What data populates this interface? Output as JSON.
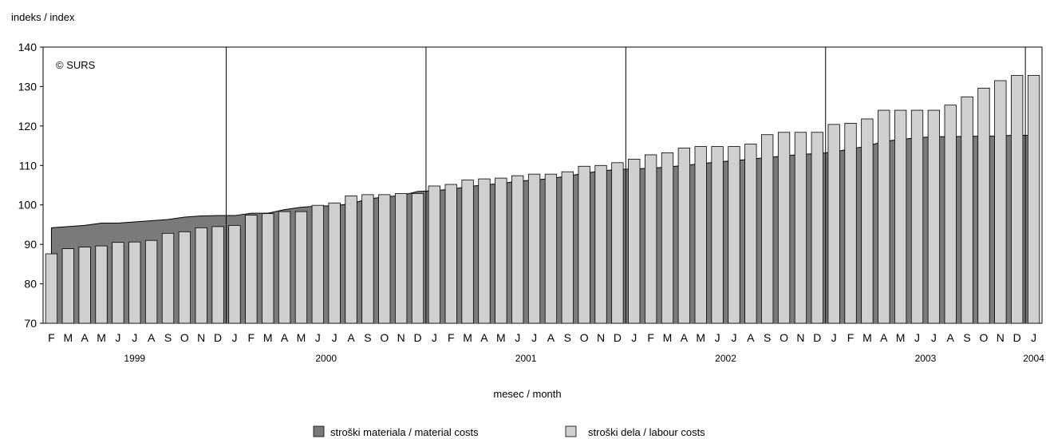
{
  "chart_data": {
    "type": "bar",
    "ylabel": "indeks / index",
    "xlabel": "mesec / month",
    "copyright": "© SURS",
    "ylim": [
      70,
      140
    ],
    "yticks": [
      70,
      80,
      90,
      100,
      110,
      120,
      130,
      140
    ],
    "months": [
      "F",
      "M",
      "A",
      "M",
      "J",
      "J",
      "A",
      "S",
      "O",
      "N",
      "D",
      "J",
      "F",
      "M",
      "A",
      "M",
      "J",
      "J",
      "A",
      "S",
      "O",
      "N",
      "D",
      "J",
      "F",
      "M",
      "A",
      "M",
      "J",
      "J",
      "A",
      "S",
      "O",
      "N",
      "D",
      "J",
      "F",
      "M",
      "A",
      "M",
      "J",
      "J",
      "A",
      "S",
      "O",
      "N",
      "D",
      "J",
      "F",
      "M",
      "A",
      "M",
      "J",
      "J",
      "A",
      "S",
      "O",
      "N",
      "D",
      "J"
    ],
    "years": [
      {
        "label": "1999",
        "start": 0,
        "end": 10
      },
      {
        "label": "2000",
        "start": 11,
        "end": 22
      },
      {
        "label": "2001",
        "start": 23,
        "end": 34
      },
      {
        "label": "2002",
        "start": 35,
        "end": 46
      },
      {
        "label": "2003",
        "start": 47,
        "end": 58
      },
      {
        "label": "2004",
        "start": 59,
        "end": 59
      }
    ],
    "series": [
      {
        "name": "stroški materiala / material costs",
        "render": "area",
        "color": "#7a7a7a",
        "values": [
          94.2,
          94.5,
          94.8,
          95.4,
          95.4,
          95.7,
          96.0,
          96.3,
          96.9,
          97.2,
          97.3,
          97.3,
          97.9,
          97.9,
          98.8,
          99.4,
          99.7,
          99.8,
          100.3,
          101.5,
          102.0,
          102.4,
          103.4,
          103.6,
          104.0,
          104.6,
          105.1,
          105.4,
          106.0,
          106.3,
          106.7,
          107.3,
          108.0,
          108.6,
          109.0,
          109.1,
          109.3,
          109.6,
          110.0,
          110.4,
          110.9,
          111.2,
          111.6,
          112.0,
          112.4,
          112.8,
          113.0,
          113.4,
          114.2,
          114.9,
          116.1,
          116.6,
          117.0,
          117.3,
          117.3,
          117.4,
          117.4,
          117.5,
          117.7,
          117.6
        ]
      },
      {
        "name": "stroški dela / labour costs",
        "render": "bar",
        "color": "#d0d0d0",
        "values": [
          87.6,
          88.9,
          89.3,
          89.6,
          90.5,
          90.6,
          91.0,
          92.8,
          93.2,
          94.2,
          94.5,
          94.8,
          97.4,
          97.8,
          98.3,
          98.3,
          99.9,
          100.5,
          102.3,
          102.6,
          102.6,
          102.9,
          102.9,
          104.8,
          105.2,
          106.3,
          106.6,
          106.8,
          107.4,
          107.8,
          107.8,
          108.4,
          109.8,
          110.0,
          110.7,
          111.6,
          112.7,
          113.2,
          114.4,
          114.8,
          114.8,
          114.8,
          115.4,
          117.8,
          118.4,
          118.4,
          118.4,
          120.4,
          120.7,
          121.8,
          124.0,
          124.0,
          124.0,
          124.0,
          125.3,
          127.4,
          129.6,
          131.5,
          132.8,
          132.8
        ]
      }
    ],
    "legend_position": "bottom-center"
  }
}
